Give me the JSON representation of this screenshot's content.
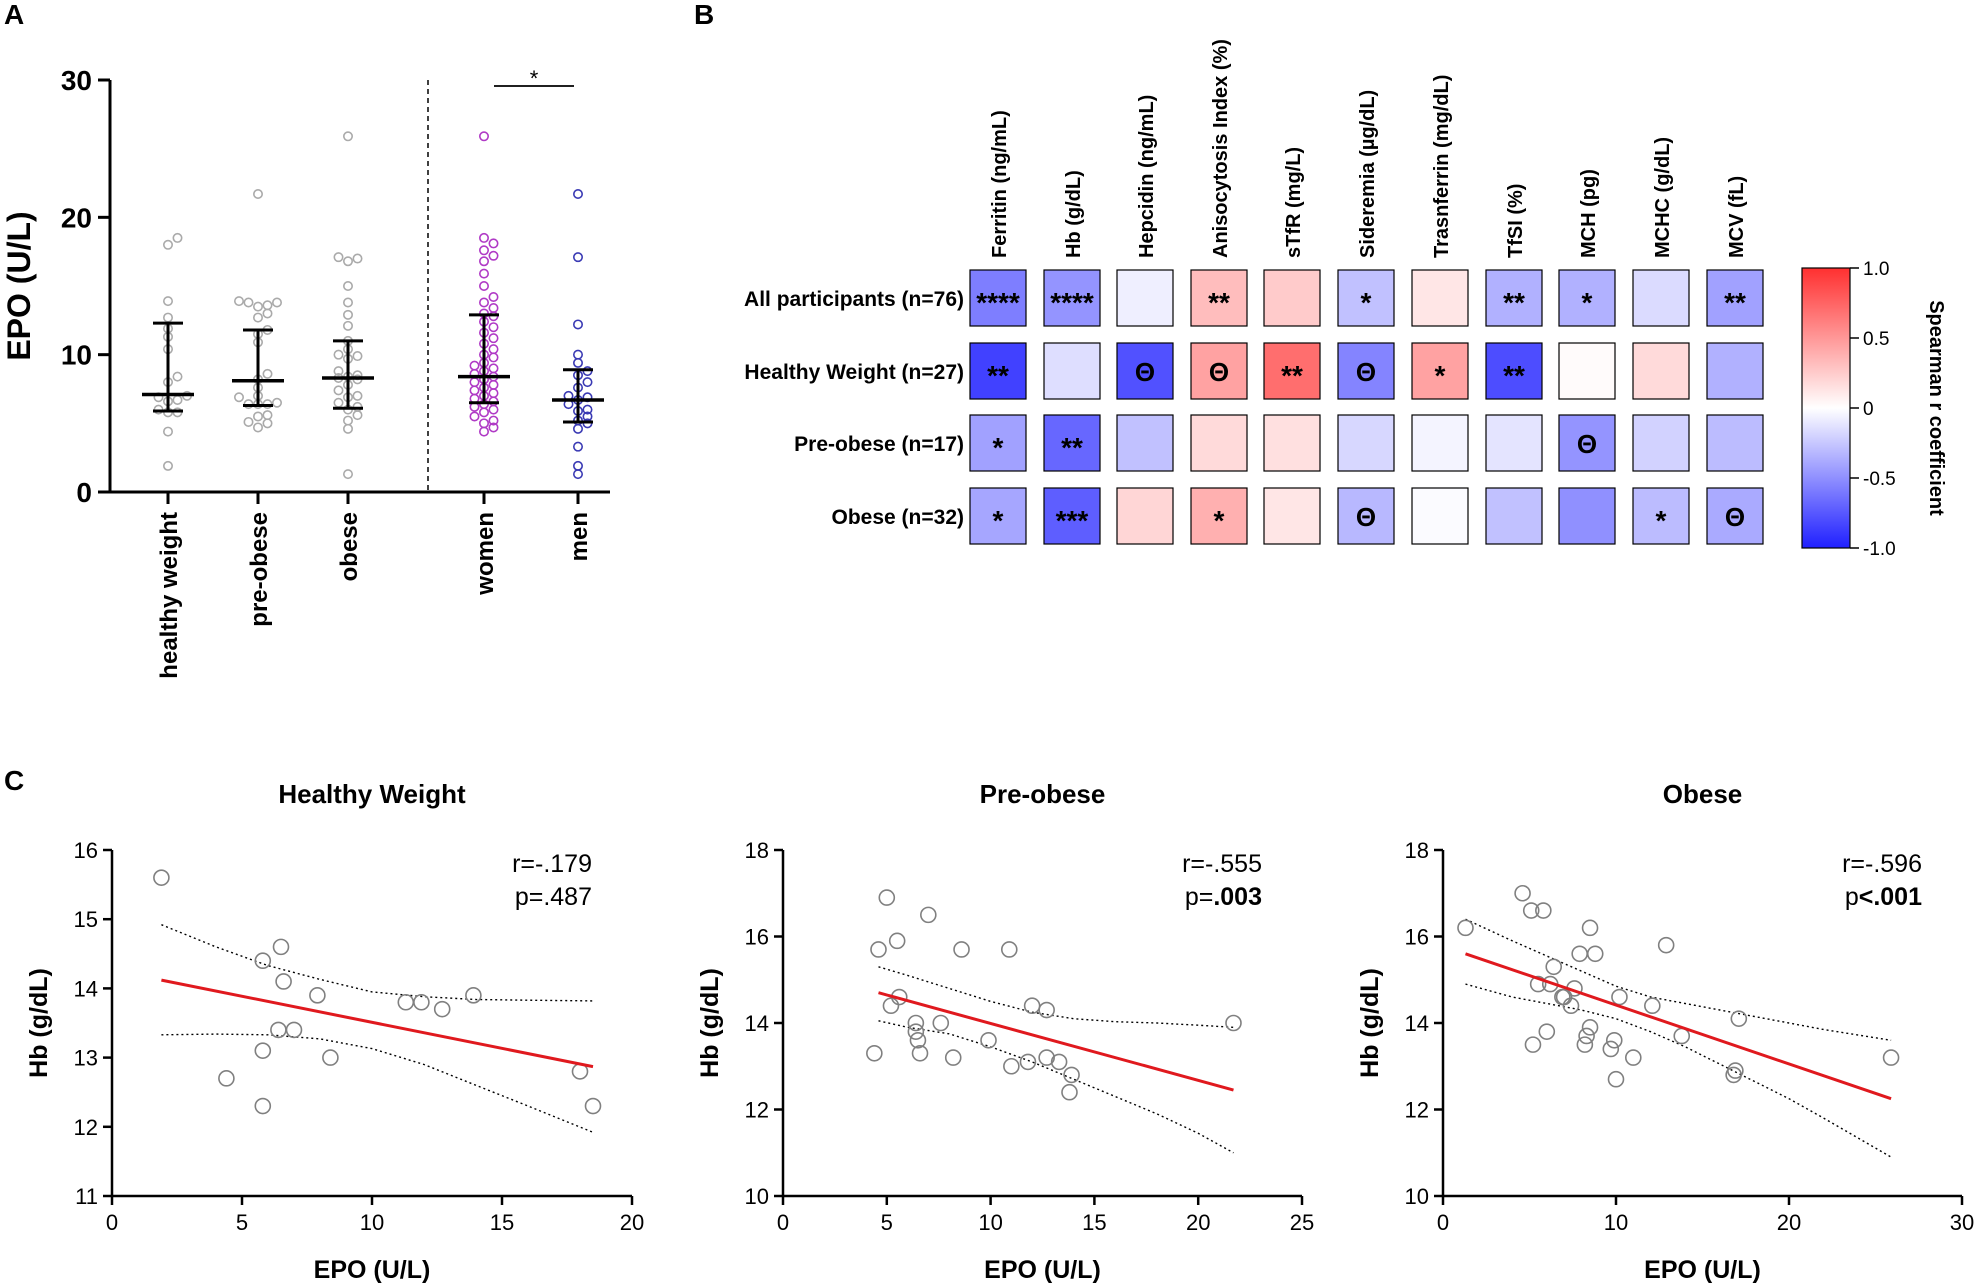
{
  "panels": {
    "a": "A",
    "b": "B",
    "c": "C"
  },
  "colors": {
    "neutral": "#aaaaaa",
    "women": "#b03ac6",
    "men": "#3a3ab4",
    "fit": "#e0191e",
    "axis": "#000000",
    "cbar_high": "#ff3030",
    "cbar_mid": "#ffffff",
    "cbar_low": "#2020ff"
  },
  "chart_data": [
    {
      "id": "A",
      "type": "scatter",
      "title": "",
      "ylabel": "EPO (U/L)",
      "ylim": [
        0,
        30
      ],
      "yticks": [
        0,
        10,
        20,
        30
      ],
      "categories": [
        "healthy weight",
        "pre-obese",
        "obese",
        "women",
        "men"
      ],
      "significance": {
        "between": [
          "women",
          "men"
        ],
        "label": "*"
      },
      "groups": [
        {
          "name": "healthy weight",
          "color": "neutral",
          "median": 7.1,
          "q1": 5.9,
          "q3": 12.3,
          "values": [
            1.9,
            4.4,
            5.8,
            5.8,
            6.0,
            6.6,
            6.7,
            6.9,
            7.0,
            8.0,
            8.4,
            10.4,
            11.3,
            11.9,
            12.7,
            13.9,
            18.0,
            18.5
          ]
        },
        {
          "name": "pre-obese",
          "color": "neutral",
          "median": 8.1,
          "q1": 6.3,
          "q3": 11.8,
          "values": [
            4.7,
            5.0,
            5.1,
            5.5,
            5.6,
            6.4,
            6.4,
            6.4,
            6.5,
            6.9,
            7.0,
            7.6,
            8.2,
            8.6,
            10.9,
            11.5,
            11.8,
            12.7,
            13.0,
            13.5,
            13.6,
            13.8,
            13.8,
            13.9,
            21.7
          ]
        },
        {
          "name": "obese",
          "color": "neutral",
          "median": 8.3,
          "q1": 6.1,
          "q3": 11.0,
          "values": [
            1.3,
            4.6,
            5.2,
            5.6,
            6.0,
            6.2,
            6.5,
            6.9,
            7.0,
            7.4,
            7.8,
            8.2,
            8.3,
            8.4,
            8.5,
            8.8,
            9.7,
            9.9,
            10.0,
            10.4,
            11.0,
            12.1,
            12.9,
            13.8,
            15.0,
            16.8,
            17.1,
            17.0,
            25.9
          ]
        },
        {
          "name": "women",
          "color": "women",
          "median": 8.4,
          "q1": 6.5,
          "q3": 12.9,
          "values": [
            4.4,
            4.7,
            5.0,
            5.2,
            5.5,
            5.8,
            6.0,
            6.2,
            6.4,
            6.6,
            6.8,
            7.0,
            7.2,
            7.4,
            7.6,
            7.8,
            8.0,
            8.2,
            8.4,
            8.6,
            8.8,
            9.0,
            9.2,
            9.4,
            9.8,
            10.0,
            10.4,
            10.8,
            11.2,
            11.6,
            12.0,
            12.4,
            12.8,
            13.0,
            13.4,
            13.8,
            14.2,
            15.0,
            15.9,
            16.8,
            17.2,
            17.6,
            18.1,
            18.5,
            25.9
          ]
        },
        {
          "name": "men",
          "color": "men",
          "median": 6.7,
          "q1": 5.1,
          "q3": 8.9,
          "values": [
            1.3,
            1.9,
            3.3,
            4.6,
            5.0,
            5.2,
            5.5,
            5.9,
            6.0,
            6.4,
            6.7,
            6.9,
            7.0,
            7.6,
            8.0,
            8.5,
            8.8,
            9.4,
            10.0,
            12.2,
            17.1,
            21.7
          ]
        }
      ]
    },
    {
      "id": "B",
      "type": "heatmap",
      "columns": [
        "Ferritin (ng/mL)",
        "Hb (g/dL)",
        "Hepcidin (ng/mL)",
        "Anisocytosis Index (%)",
        "sTfR (mg/L)",
        "Sideremia (µg/dL)",
        "Trasnferrin (mg/dL)",
        "TfSI (%)",
        "MCH (pg)",
        "MCHC (g/dL)",
        "MCV (fL)"
      ],
      "rows": [
        "All participants (n=76)",
        "Healthy Weight (n=27)",
        "Pre-obese (n=17)",
        "Obese (n=32)"
      ],
      "values": [
        [
          -0.58,
          -0.48,
          -0.07,
          0.32,
          0.25,
          -0.28,
          0.12,
          -0.35,
          -0.35,
          -0.16,
          -0.42
        ],
        [
          -0.85,
          -0.15,
          -0.78,
          0.45,
          0.7,
          -0.55,
          0.45,
          -0.8,
          0.02,
          0.18,
          -0.35
        ],
        [
          -0.42,
          -0.68,
          -0.28,
          0.18,
          0.15,
          -0.18,
          -0.05,
          -0.12,
          -0.48,
          -0.2,
          -0.3
        ],
        [
          -0.4,
          -0.72,
          0.2,
          0.38,
          0.12,
          -0.32,
          -0.02,
          -0.28,
          -0.5,
          -0.3,
          -0.38
        ]
      ],
      "labels": [
        [
          "****",
          "****",
          "",
          "**",
          "",
          "*",
          "",
          "**",
          "*",
          "",
          "**"
        ],
        [
          "**",
          "",
          "Θ",
          "Θ",
          "**",
          "Θ",
          "*",
          "**",
          "",
          "",
          ""
        ],
        [
          "*",
          "**",
          "",
          "",
          "",
          "",
          "",
          "",
          "Θ",
          "",
          ""
        ],
        [
          "*",
          "***",
          "",
          "*",
          "",
          "Θ",
          "",
          "",
          "",
          "*",
          "Θ"
        ]
      ],
      "colorbar": {
        "label": "Spearman r coefficient",
        "range": [
          -1.0,
          1.0
        ],
        "ticks": [
          "1.0",
          "0.5",
          "0",
          "-0.5",
          "-1.0"
        ]
      }
    },
    {
      "id": "C1",
      "type": "scatter",
      "title": "Healthy Weight",
      "xlabel": "EPO (U/L)",
      "ylabel": "Hb (g/dL)",
      "xlim": [
        0,
        20
      ],
      "ylim": [
        11,
        16
      ],
      "xticks": [
        0,
        5,
        10,
        15,
        20
      ],
      "yticks": [
        11,
        12,
        13,
        14,
        15,
        16
      ],
      "stat_r": "r=-.179",
      "stat_p_prefix": "p=",
      "stat_p_value": ".487",
      "stat_p_bold": false,
      "fit": {
        "x": [
          1.9,
          18.5
        ],
        "y": [
          14.12,
          12.87
        ]
      },
      "ci_upper": {
        "x": [
          1.9,
          4,
          6,
          8,
          10,
          12,
          14,
          16,
          18.5
        ],
        "y": [
          14.92,
          14.6,
          14.33,
          14.13,
          13.95,
          13.88,
          13.84,
          13.83,
          13.82
        ]
      },
      "ci_lower": {
        "x": [
          1.9,
          4,
          6,
          8,
          10,
          12,
          14,
          16,
          18.5
        ],
        "y": [
          13.33,
          13.34,
          13.33,
          13.27,
          13.13,
          12.9,
          12.6,
          12.3,
          11.92
        ]
      },
      "points": {
        "x": [
          1.9,
          4.4,
          5.8,
          5.8,
          5.8,
          6.4,
          6.5,
          6.6,
          7.0,
          7.9,
          8.4,
          11.3,
          11.9,
          12.7,
          13.9,
          18.0,
          18.5
        ],
        "y": [
          15.6,
          12.7,
          14.4,
          13.1,
          12.3,
          13.4,
          14.6,
          14.1,
          13.4,
          13.9,
          13.0,
          13.8,
          13.8,
          13.7,
          13.9,
          12.8,
          12.3
        ]
      }
    },
    {
      "id": "C2",
      "type": "scatter",
      "title": "Pre-obese",
      "xlabel": "EPO (U/L)",
      "ylabel": "Hb (g/dL)",
      "xlim": [
        0,
        25
      ],
      "ylim": [
        10,
        18
      ],
      "xticks": [
        0,
        5,
        10,
        15,
        20,
        25
      ],
      "yticks": [
        10,
        12,
        14,
        16,
        18
      ],
      "stat_r": "r=-.555",
      "stat_p_prefix": "p=",
      "stat_p_value": ".003",
      "stat_p_bold": true,
      "fit": {
        "x": [
          4.6,
          21.7
        ],
        "y": [
          14.7,
          12.45
        ]
      },
      "ci_upper": {
        "x": [
          4.6,
          6,
          8,
          10,
          12,
          14,
          16,
          18,
          20,
          21.7
        ],
        "y": [
          15.3,
          15.1,
          14.8,
          14.5,
          14.25,
          14.1,
          14.03,
          14.0,
          13.95,
          13.9
        ]
      },
      "ci_lower": {
        "x": [
          4.6,
          6,
          8,
          10,
          12,
          14,
          16,
          18,
          20,
          21.7
        ],
        "y": [
          14.05,
          13.9,
          13.75,
          13.45,
          13.1,
          12.7,
          12.3,
          11.9,
          11.45,
          11.0
        ]
      },
      "points": {
        "x": [
          4.4,
          4.6,
          5.0,
          5.2,
          5.5,
          5.6,
          6.4,
          6.4,
          6.5,
          6.6,
          7.0,
          7.6,
          8.2,
          8.6,
          9.9,
          10.9,
          11.0,
          11.8,
          12.0,
          12.7,
          12.7,
          13.3,
          13.8,
          13.9,
          21.7
        ],
        "y": [
          13.3,
          15.7,
          16.9,
          14.4,
          15.9,
          14.6,
          14.0,
          13.8,
          13.6,
          13.3,
          16.5,
          14.0,
          13.2,
          15.7,
          13.6,
          15.7,
          13.0,
          13.1,
          14.4,
          14.3,
          13.2,
          13.1,
          12.4,
          12.8,
          14.0
        ]
      }
    },
    {
      "id": "C3",
      "type": "scatter",
      "title": "Obese",
      "xlabel": "EPO (U/L)",
      "ylabel": "Hb (g/dL)",
      "xlim": [
        0,
        30
      ],
      "ylim": [
        10,
        18
      ],
      "xticks": [
        0,
        10,
        20,
        30
      ],
      "yticks": [
        10,
        12,
        14,
        16,
        18
      ],
      "stat_r": "r=-.596",
      "stat_p_prefix": "p",
      "stat_p_value": "<.001",
      "stat_p_bold": true,
      "fit": {
        "x": [
          1.3,
          25.9
        ],
        "y": [
          15.6,
          12.25
        ]
      },
      "ci_upper": {
        "x": [
          1.3,
          4,
          6,
          8,
          10,
          12,
          14,
          16,
          18,
          20,
          22,
          25.9
        ],
        "y": [
          16.4,
          15.9,
          15.55,
          15.2,
          14.85,
          14.6,
          14.45,
          14.3,
          14.15,
          14.0,
          13.85,
          13.6
        ]
      },
      "ci_lower": {
        "x": [
          1.3,
          4,
          6,
          8,
          10,
          12,
          14,
          16,
          18,
          20,
          22,
          25.9
        ],
        "y": [
          14.9,
          14.6,
          14.45,
          14.3,
          14.1,
          13.8,
          13.45,
          13.05,
          12.65,
          12.25,
          11.8,
          10.9
        ]
      },
      "points": {
        "x": [
          1.3,
          4.6,
          5.1,
          5.2,
          5.5,
          5.8,
          6.0,
          6.2,
          6.4,
          6.9,
          7.0,
          7.4,
          7.6,
          7.9,
          8.2,
          8.3,
          8.5,
          8.5,
          8.8,
          9.7,
          9.9,
          10.0,
          10.2,
          11.0,
          12.1,
          12.9,
          13.8,
          16.8,
          16.9,
          17.1,
          25.9
        ],
        "y": [
          16.2,
          17.0,
          16.6,
          13.5,
          14.9,
          16.6,
          13.8,
          14.9,
          15.3,
          14.6,
          14.6,
          14.4,
          14.8,
          15.6,
          13.5,
          13.7,
          16.2,
          13.9,
          15.6,
          13.4,
          13.6,
          12.7,
          14.6,
          13.2,
          14.4,
          15.8,
          13.7,
          12.8,
          12.9,
          14.1,
          13.2
        ]
      }
    }
  ]
}
